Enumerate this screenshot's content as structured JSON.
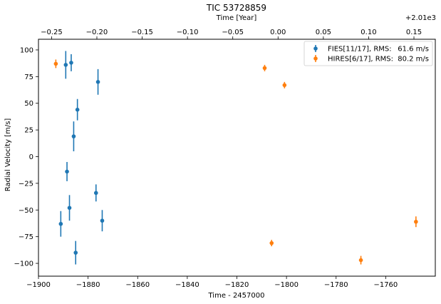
{
  "chart_data": {
    "type": "scatter",
    "title": "TIC 53728859",
    "xlabel": "Time - 2457000",
    "ylabel": "Radial Velocity [m/s]",
    "top_xlabel": "Time [Year]",
    "top_offset_label": "+2.01e3",
    "xlim": [
      -1900,
      -1740
    ],
    "ylim": [
      -112,
      110
    ],
    "x_ticks": [
      -1900,
      -1880,
      -1860,
      -1840,
      -1820,
      -1800,
      -1780,
      -1760
    ],
    "y_ticks": [
      -100,
      -75,
      -50,
      -25,
      0,
      25,
      50,
      75,
      100
    ],
    "top_ticks": [
      -0.25,
      -0.2,
      -0.15,
      -0.1,
      -0.05,
      0.0,
      0.05,
      0.1,
      0.15
    ],
    "top_tick_labels": [
      "−0.25",
      "−0.20",
      "−0.15",
      "−0.10",
      "−0.05",
      "0.00",
      "0.05",
      "0.10",
      "0.15"
    ],
    "top_axis_reference": {
      "x": -1803.4,
      "year_offset": 0.0
    },
    "top_axis_days_per_unit": 365.25,
    "grid": false,
    "legend_position": "top-right",
    "series": [
      {
        "name": "FIES[11/17], RMS:",
        "rms": "61.6 m/s",
        "color": "#1f77b4",
        "points": [
          {
            "x": -1891.0,
            "y": -63,
            "err": 12
          },
          {
            "x": -1889.0,
            "y": 86,
            "err": 13
          },
          {
            "x": -1888.5,
            "y": -14,
            "err": 9
          },
          {
            "x": -1887.5,
            "y": -48,
            "err": 12
          },
          {
            "x": -1886.8,
            "y": 88,
            "err": 8
          },
          {
            "x": -1885.8,
            "y": 19,
            "err": 14
          },
          {
            "x": -1885.0,
            "y": -90,
            "err": 11
          },
          {
            "x": -1884.3,
            "y": 44,
            "err": 10
          },
          {
            "x": -1876.8,
            "y": -34,
            "err": 8
          },
          {
            "x": -1876.0,
            "y": 70,
            "err": 12
          },
          {
            "x": -1874.3,
            "y": -60,
            "err": 10
          }
        ]
      },
      {
        "name": "HIRES[6/17], RMS:",
        "rms": "80.2 m/s",
        "color": "#ff7f0e",
        "points": [
          {
            "x": -1893.0,
            "y": 87,
            "err": 4
          },
          {
            "x": -1808.8,
            "y": 83,
            "err": 3
          },
          {
            "x": -1806.0,
            "y": -81,
            "err": 3
          },
          {
            "x": -1800.8,
            "y": 67,
            "err": 3
          },
          {
            "x": -1770.0,
            "y": -97,
            "err": 4
          },
          {
            "x": -1747.8,
            "y": -61,
            "err": 5
          }
        ]
      }
    ]
  }
}
